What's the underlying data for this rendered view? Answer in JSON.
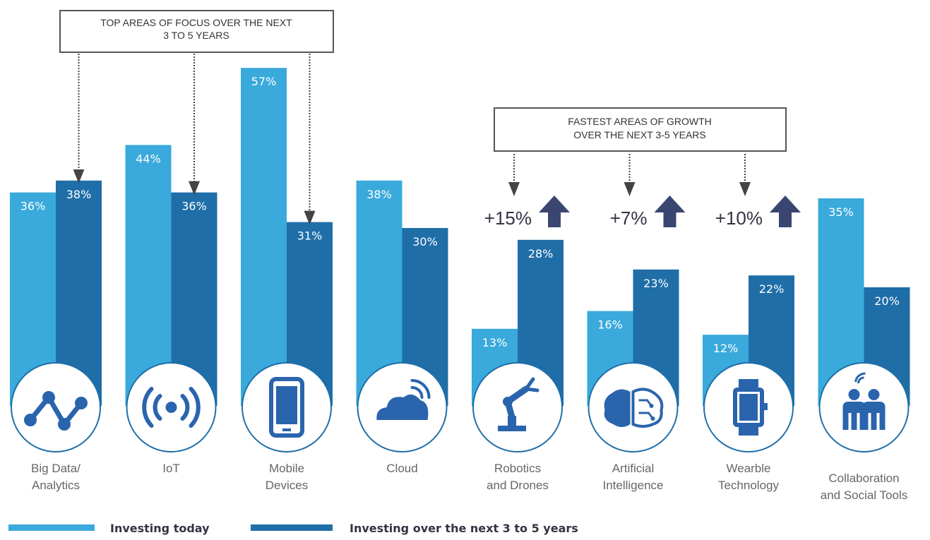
{
  "callouts": {
    "top_focus": [
      "TOP AREAS OF FOCUS OVER THE NEXT",
      "3 TO 5 YEARS"
    ],
    "fastest_growth": [
      "FASTEST AREAS OF GROWTH",
      "OVER THE NEXT 3-5 YEARS"
    ]
  },
  "colors": {
    "today": "#3aa9dc",
    "future": "#1f6ea8",
    "icon": "#2a64ad",
    "arrow": "#3b4670",
    "callout_border": "#555555"
  },
  "chart_data": {
    "type": "bar",
    "categories": [
      [
        "Big Data/",
        "Analytics"
      ],
      [
        "IoT"
      ],
      [
        "Mobile",
        "Devices"
      ],
      [
        "Cloud"
      ],
      [
        "Robotics",
        "and Drones"
      ],
      [
        "Artificial",
        "Intelligence"
      ],
      [
        "Wearble",
        "Technology"
      ],
      [
        "Collaboration",
        "and Social Tools"
      ]
    ],
    "icons": [
      "analytics-icon",
      "iot-signal-icon",
      "mobile-device-icon",
      "cloud-icon",
      "robot-arm-icon",
      "brain-circuit-icon",
      "smartwatch-icon",
      "people-icon"
    ],
    "series": [
      {
        "name": "Investing today",
        "values": [
          36,
          44,
          57,
          38,
          13,
          16,
          12,
          35
        ],
        "labels": [
          "36%",
          "44%",
          "57%",
          "38%",
          "13%",
          "16%",
          "12%",
          "35%"
        ]
      },
      {
        "name": "Investing over the next 3 to 5 years",
        "values": [
          38,
          36,
          31,
          30,
          28,
          23,
          22,
          20
        ],
        "labels": [
          "38%",
          "36%",
          "31%",
          "30%",
          "28%",
          "23%",
          "22%",
          "20%"
        ]
      }
    ],
    "growth": [
      {
        "category_index": 4,
        "label": "+15%"
      },
      {
        "category_index": 5,
        "label": "+7%"
      },
      {
        "category_index": 6,
        "label": "+10%"
      }
    ],
    "top_focus_indices": [
      0,
      1,
      2
    ],
    "legend_position": "bottom-left",
    "grid": false,
    "title": "",
    "xlabel": "",
    "ylabel": ""
  }
}
